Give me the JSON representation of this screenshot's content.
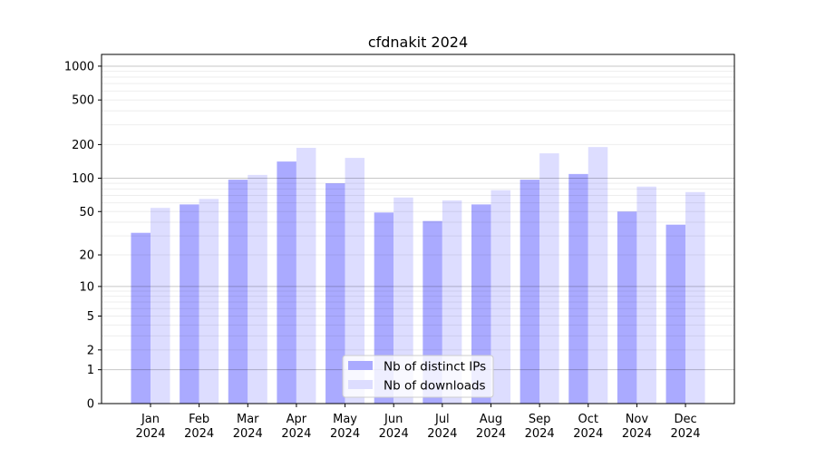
{
  "chart_data": {
    "type": "bar",
    "title": "cfdnakit 2024",
    "xlabel": "",
    "ylabel": "",
    "yscale": "symlog",
    "ylim": [
      0,
      1270
    ],
    "yticks": [
      0,
      1,
      2,
      5,
      10,
      20,
      50,
      100,
      200,
      500,
      1000
    ],
    "ytick_labels": [
      "0",
      "1",
      "2",
      "5",
      "10",
      "20",
      "50",
      "100",
      "200",
      "500",
      "1000"
    ],
    "categories": [
      "Jan\n2024",
      "Feb\n2024",
      "Mar\n2024",
      "Apr\n2024",
      "May\n2024",
      "Jun\n2024",
      "Jul\n2024",
      "Aug\n2024",
      "Sep\n2024",
      "Oct\n2024",
      "Nov\n2024",
      "Dec\n2024"
    ],
    "grid": true,
    "legend_position": "bottom-center",
    "series": [
      {
        "name": "Nb of distinct IPs",
        "color": "#aaaaff",
        "values": [
          32,
          58,
          97,
          141,
          90,
          49,
          41,
          58,
          97,
          109,
          50,
          38
        ]
      },
      {
        "name": "Nb of downloads",
        "color": "#ddddff",
        "values": [
          54,
          65,
          107,
          187,
          152,
          67,
          63,
          78,
          167,
          190,
          84,
          75
        ]
      }
    ]
  }
}
